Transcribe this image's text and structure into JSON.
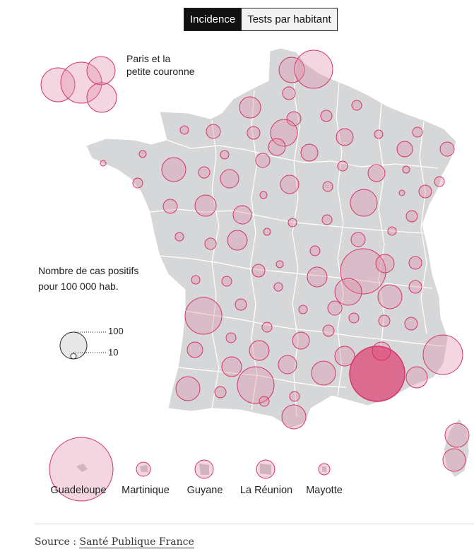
{
  "toggle": {
    "active_label": "Incidence",
    "inactive_label": "Tests par habitant"
  },
  "paris_label": {
    "line1": "Paris et la",
    "line2": "petite couronne"
  },
  "legend": {
    "title_line1": "Nombre de cas positifs",
    "title_line2": "pour 100 000 hab.",
    "large_value": "100",
    "small_value": "10"
  },
  "overseas": [
    {
      "name": "Guadeloupe"
    },
    {
      "name": "Martinique"
    },
    {
      "name": "Guyane"
    },
    {
      "name": "La Réunion"
    },
    {
      "name": "Mayotte"
    }
  ],
  "source": {
    "prefix": "Source : ",
    "link_text": "Santé Publique France"
  },
  "colors": {
    "land": "#d6d7d9",
    "border": "#ffffff",
    "bubble_fill": "#e08aa6",
    "bubble_stroke": "#d6336c",
    "highlight_fill": "#e0245e"
  }
}
